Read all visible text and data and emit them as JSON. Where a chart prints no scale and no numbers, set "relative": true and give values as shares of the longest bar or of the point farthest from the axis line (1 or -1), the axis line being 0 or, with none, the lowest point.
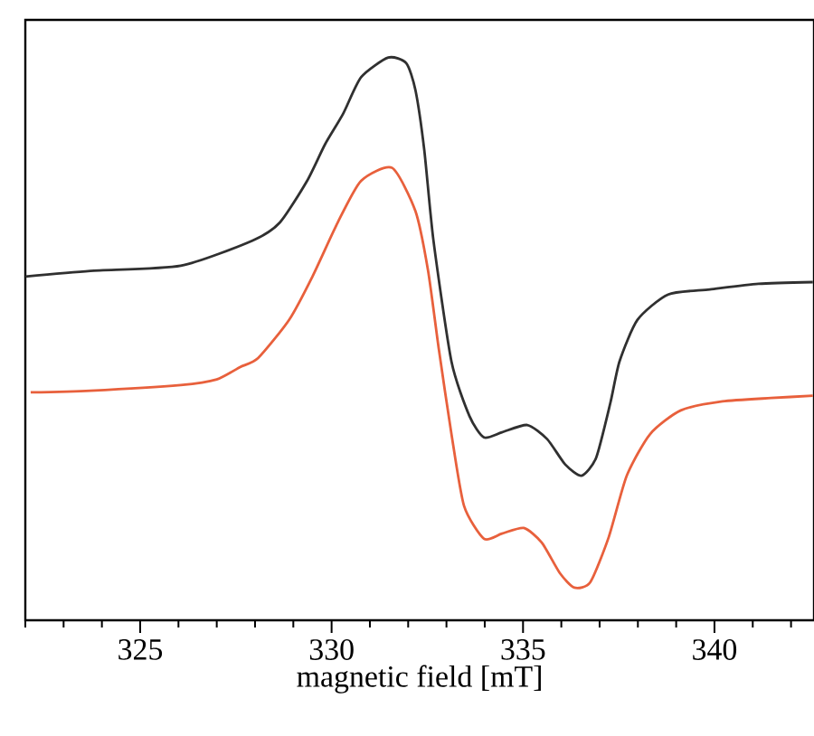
{
  "chart_data": {
    "type": "line",
    "xlabel": "magnetic field [mT]",
    "relative": true,
    "tick_labels": "x",
    "grid": false,
    "marker": "none",
    "line_style": "solid",
    "xlim": [
      322,
      342.6
    ],
    "xticks": [
      {
        "value": 322,
        "label": null
      },
      {
        "value": 323,
        "label": null
      },
      {
        "value": 324,
        "label": null
      },
      325,
      {
        "value": 326,
        "label": null
      },
      {
        "value": 327,
        "label": null
      },
      {
        "value": 328,
        "label": null
      },
      {
        "value": 329,
        "label": null
      },
      330,
      {
        "value": 331,
        "label": null
      },
      {
        "value": 332,
        "label": null
      },
      {
        "value": 333,
        "label": null
      },
      {
        "value": 334,
        "label": null
      },
      335,
      {
        "value": 336,
        "label": null
      },
      {
        "value": 337,
        "label": null
      },
      {
        "value": 338,
        "label": null
      },
      {
        "value": 339,
        "label": null
      },
      340,
      {
        "value": 341,
        "label": null
      },
      {
        "value": 342,
        "label": null
      }
    ],
    "series": [
      {
        "color": "#303030",
        "x": [
          322.0,
          323.7,
          326.06,
          327.94,
          328.65,
          329.36,
          329.83,
          330.3,
          330.77,
          331.48,
          331.95,
          332.19,
          332.42,
          332.66,
          333.13,
          333.6,
          333.98,
          334.45,
          335.11,
          335.63,
          336.1,
          336.53,
          336.91,
          337.28,
          337.52,
          337.99,
          338.79,
          339.88,
          341.15,
          342.57
        ],
        "values": [
          0.611,
          0.621,
          0.63,
          0.675,
          0.707,
          0.781,
          0.846,
          0.9,
          0.965,
          1.0,
          0.99,
          0.942,
          0.836,
          0.675,
          0.46,
          0.363,
          0.325,
          0.334,
          0.347,
          0.322,
          0.277,
          0.257,
          0.289,
          0.386,
          0.46,
          0.534,
          0.579,
          0.588,
          0.598,
          0.601
        ]
      },
      {
        "color": "#e8603c",
        "x": [
          322.14,
          323.7,
          326.06,
          327.0,
          327.61,
          328.08,
          328.89,
          329.5,
          330.16,
          330.77,
          331.58,
          332.19,
          332.52,
          332.8,
          333.13,
          333.46,
          333.98,
          334.45,
          335.02,
          335.49,
          335.96,
          336.34,
          336.76,
          337.24,
          337.71,
          338.32,
          339.12,
          340.21,
          341.48,
          342.57
        ],
        "values": [
          0.405,
          0.408,
          0.418,
          0.428,
          0.45,
          0.466,
          0.534,
          0.611,
          0.707,
          0.781,
          0.804,
          0.727,
          0.621,
          0.482,
          0.331,
          0.203,
          0.145,
          0.154,
          0.164,
          0.138,
          0.084,
          0.058,
          0.068,
          0.148,
          0.257,
          0.331,
          0.373,
          0.389,
          0.395,
          0.399
        ]
      }
    ]
  }
}
